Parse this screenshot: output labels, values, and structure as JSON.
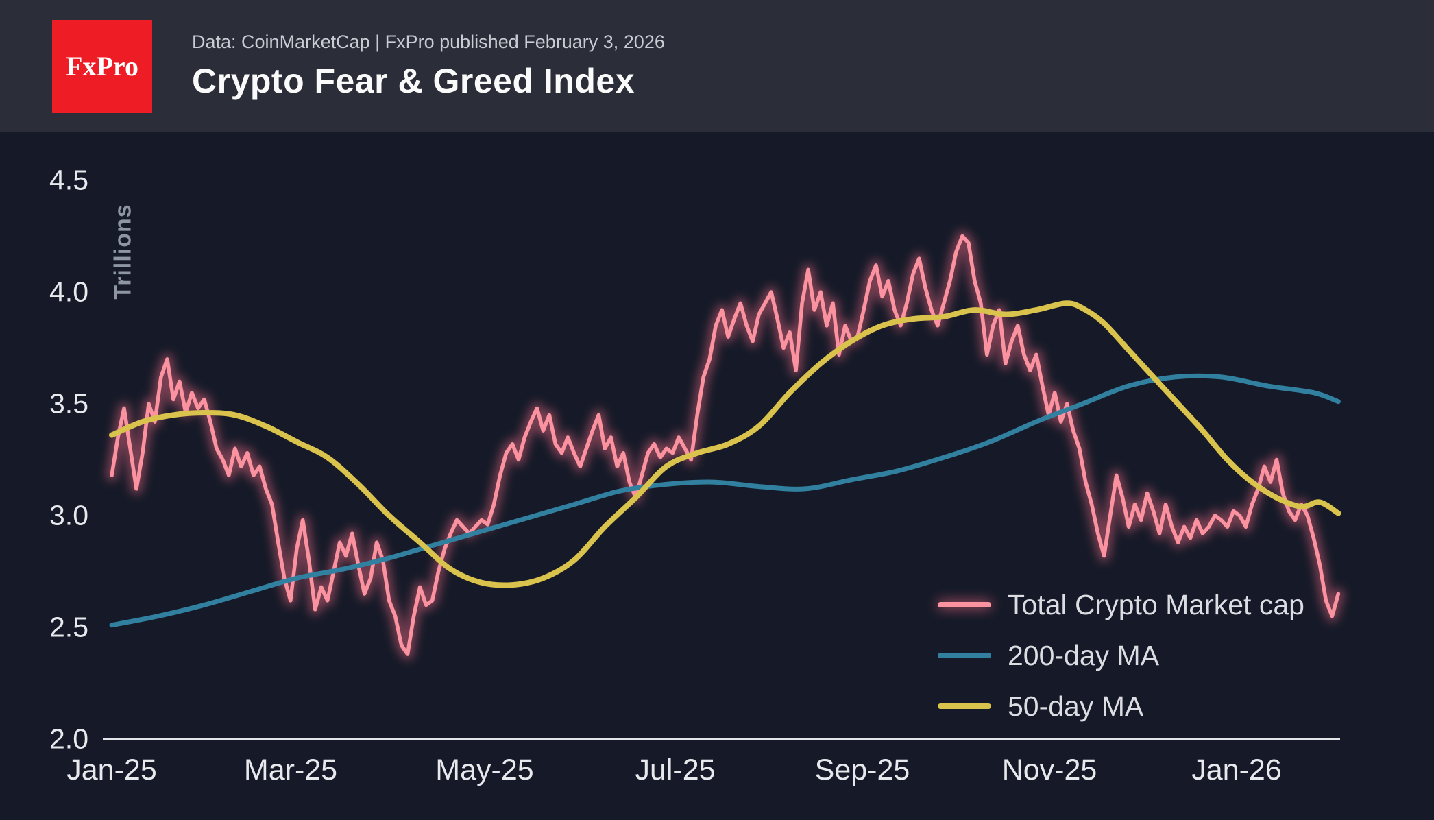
{
  "header": {
    "logo_text": "FxPro",
    "source_line": "Data: CoinMarketCap | FxPro published February 3, 2026",
    "title": "Crypto Fear & Greed Index"
  },
  "colors": {
    "header_bg": "#2b2e38",
    "chart_bg": "#161a28",
    "logo_red": "#ee1c25",
    "axis_text": "#e8e9ed",
    "axis_line": "#e3e5ea",
    "market_cap_pink": "#fa92a0",
    "ma200_teal": "#31809f",
    "ma50_yellow": "#d9c34c"
  },
  "chart_data": {
    "type": "line",
    "title": "Crypto Fear & Greed Index",
    "ylabel": "Trillions",
    "ylim": [
      2.0,
      4.5
    ],
    "grid": false,
    "legend_position": "bottom-right",
    "x_domain_days": [
      0,
      398
    ],
    "x_tick_days": [
      0,
      59,
      120,
      181,
      243,
      304,
      365
    ],
    "x_tick_labels": [
      "Jan-25",
      "Mar-25",
      "May-25",
      "Jul-25",
      "Sep-25",
      "Nov-25",
      "Jan-26"
    ],
    "y_tick_labels": [
      "4.5",
      "4.0",
      "3.5",
      "3.0",
      "2.5",
      "2.0"
    ],
    "series": [
      {
        "name": "Total Crypto Market cap",
        "color": "#fa92a0",
        "glow": true,
        "glow_color": "#f56d86",
        "smooth": false,
        "start_day": 0,
        "step_days": 2,
        "values": [
          3.18,
          3.35,
          3.48,
          3.3,
          3.12,
          3.28,
          3.5,
          3.42,
          3.62,
          3.7,
          3.52,
          3.6,
          3.46,
          3.55,
          3.48,
          3.52,
          3.42,
          3.3,
          3.25,
          3.18,
          3.3,
          3.22,
          3.28,
          3.18,
          3.22,
          3.12,
          3.05,
          2.88,
          2.72,
          2.62,
          2.85,
          2.98,
          2.8,
          2.58,
          2.68,
          2.62,
          2.75,
          2.88,
          2.82,
          2.92,
          2.78,
          2.65,
          2.72,
          2.88,
          2.8,
          2.62,
          2.55,
          2.42,
          2.38,
          2.55,
          2.68,
          2.6,
          2.62,
          2.75,
          2.85,
          2.92,
          2.98,
          2.95,
          2.92,
          2.95,
          2.98,
          2.96,
          3.05,
          3.18,
          3.28,
          3.32,
          3.25,
          3.35,
          3.42,
          3.48,
          3.38,
          3.45,
          3.32,
          3.28,
          3.35,
          3.28,
          3.22,
          3.3,
          3.38,
          3.45,
          3.3,
          3.35,
          3.22,
          3.28,
          3.15,
          3.08,
          3.18,
          3.28,
          3.32,
          3.26,
          3.3,
          3.28,
          3.35,
          3.3,
          3.25,
          3.45,
          3.62,
          3.7,
          3.85,
          3.92,
          3.8,
          3.88,
          3.95,
          3.85,
          3.78,
          3.9,
          3.95,
          4.0,
          3.88,
          3.75,
          3.82,
          3.65,
          3.95,
          4.1,
          3.92,
          4.0,
          3.85,
          3.95,
          3.72,
          3.85,
          3.78,
          3.8,
          3.92,
          4.05,
          4.12,
          3.98,
          4.05,
          3.92,
          3.85,
          3.95,
          4.08,
          4.15,
          4.02,
          3.92,
          3.85,
          3.95,
          4.05,
          4.18,
          4.25,
          4.22,
          4.05,
          3.95,
          3.72,
          3.85,
          3.92,
          3.68,
          3.78,
          3.85,
          3.72,
          3.65,
          3.72,
          3.58,
          3.45,
          3.55,
          3.42,
          3.5,
          3.38,
          3.3,
          3.15,
          3.05,
          2.92,
          2.82,
          3.0,
          3.18,
          3.08,
          2.95,
          3.05,
          2.98,
          3.1,
          3.02,
          2.92,
          3.05,
          2.95,
          2.88,
          2.95,
          2.9,
          2.98,
          2.92,
          2.95,
          3.0,
          2.98,
          2.95,
          3.02,
          3.0,
          2.95,
          3.05,
          3.12,
          3.22,
          3.15,
          3.25,
          3.1,
          3.02,
          2.98,
          3.05,
          3.0,
          2.9,
          2.78,
          2.62,
          2.55,
          2.65
        ]
      },
      {
        "name": "200-day MA",
        "color": "#31809f",
        "glow": false,
        "smooth": true,
        "points": [
          [
            0,
            2.51
          ],
          [
            15,
            2.55
          ],
          [
            30,
            2.6
          ],
          [
            45,
            2.66
          ],
          [
            60,
            2.72
          ],
          [
            75,
            2.76
          ],
          [
            90,
            2.81
          ],
          [
            105,
            2.87
          ],
          [
            120,
            2.93
          ],
          [
            135,
            2.99
          ],
          [
            150,
            3.05
          ],
          [
            165,
            3.11
          ],
          [
            180,
            3.14
          ],
          [
            195,
            3.15
          ],
          [
            210,
            3.13
          ],
          [
            225,
            3.12
          ],
          [
            240,
            3.16
          ],
          [
            255,
            3.2
          ],
          [
            270,
            3.26
          ],
          [
            285,
            3.33
          ],
          [
            300,
            3.42
          ],
          [
            315,
            3.5
          ],
          [
            330,
            3.58
          ],
          [
            345,
            3.62
          ],
          [
            360,
            3.62
          ],
          [
            375,
            3.58
          ],
          [
            390,
            3.55
          ],
          [
            398,
            3.51
          ]
        ]
      },
      {
        "name": "50-day MA",
        "color": "#d9c34c",
        "glow": false,
        "smooth": true,
        "points": [
          [
            0,
            3.36
          ],
          [
            10,
            3.42
          ],
          [
            20,
            3.45
          ],
          [
            30,
            3.46
          ],
          [
            40,
            3.45
          ],
          [
            50,
            3.4
          ],
          [
            60,
            3.33
          ],
          [
            70,
            3.26
          ],
          [
            80,
            3.14
          ],
          [
            90,
            3.0
          ],
          [
            100,
            2.88
          ],
          [
            110,
            2.76
          ],
          [
            120,
            2.7
          ],
          [
            130,
            2.69
          ],
          [
            140,
            2.72
          ],
          [
            150,
            2.8
          ],
          [
            160,
            2.95
          ],
          [
            170,
            3.08
          ],
          [
            180,
            3.22
          ],
          [
            190,
            3.28
          ],
          [
            200,
            3.32
          ],
          [
            210,
            3.4
          ],
          [
            220,
            3.55
          ],
          [
            230,
            3.68
          ],
          [
            240,
            3.78
          ],
          [
            250,
            3.85
          ],
          [
            260,
            3.88
          ],
          [
            270,
            3.89
          ],
          [
            280,
            3.92
          ],
          [
            290,
            3.9
          ],
          [
            300,
            3.92
          ],
          [
            310,
            3.95
          ],
          [
            316,
            3.92
          ],
          [
            322,
            3.86
          ],
          [
            330,
            3.74
          ],
          [
            338,
            3.62
          ],
          [
            346,
            3.5
          ],
          [
            354,
            3.38
          ],
          [
            362,
            3.25
          ],
          [
            370,
            3.15
          ],
          [
            378,
            3.08
          ],
          [
            386,
            3.04
          ],
          [
            392,
            3.06
          ],
          [
            398,
            3.01
          ]
        ]
      }
    ]
  }
}
